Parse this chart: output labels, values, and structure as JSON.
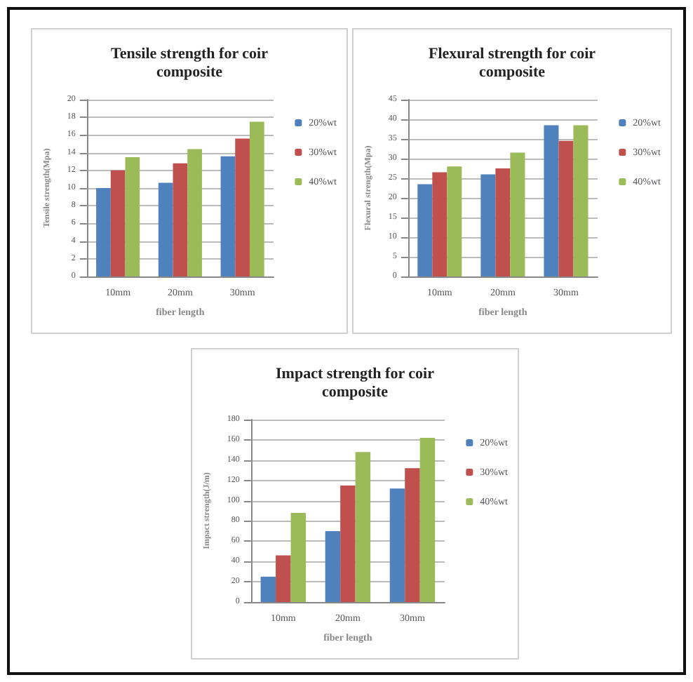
{
  "chart_data": [
    {
      "type": "bar",
      "title": "Tensile strength for coir composite",
      "xlabel": "fiber length",
      "ylabel": "Tensile strength(Mpa)",
      "categories": [
        "10mm",
        "20mm",
        "30mm"
      ],
      "series": [
        {
          "name": "20%wt",
          "color": "#4f81bd",
          "values": [
            10,
            10.6,
            13.6
          ]
        },
        {
          "name": "30%wt",
          "color": "#c0504d",
          "values": [
            12,
            12.8,
            15.6
          ]
        },
        {
          "name": "40%wt",
          "color": "#9bbb59",
          "values": [
            13.5,
            14.4,
            17.5
          ]
        }
      ],
      "ylim": [
        0,
        20
      ],
      "yticks": [
        0,
        2,
        4,
        6,
        8,
        10,
        12,
        14,
        16,
        18,
        20
      ],
      "grid": "y",
      "legend": "right"
    },
    {
      "type": "bar",
      "title": "Flexural strength for coir composite",
      "xlabel": "fiber length",
      "ylabel": "Flexural strength(Mpa)",
      "categories": [
        "10mm",
        "20mm",
        "30mm"
      ],
      "series": [
        {
          "name": "20%wt",
          "color": "#4f81bd",
          "values": [
            23.5,
            26,
            38.5
          ]
        },
        {
          "name": "30%wt",
          "color": "#c0504d",
          "values": [
            26.5,
            27.5,
            34.5
          ]
        },
        {
          "name": "40%wt",
          "color": "#9bbb59",
          "values": [
            28,
            31.5,
            38.5
          ]
        }
      ],
      "ylim": [
        0,
        45
      ],
      "yticks": [
        0,
        5,
        10,
        15,
        20,
        25,
        30,
        35,
        40,
        45
      ],
      "grid": "y",
      "legend": "right"
    },
    {
      "type": "bar",
      "title": "Impact strength for coir composite",
      "xlabel": "fiber length",
      "ylabel": "Impact strength(J/m)",
      "categories": [
        "10mm",
        "20mm",
        "30mm"
      ],
      "series": [
        {
          "name": "20%wt",
          "color": "#4f81bd",
          "values": [
            25,
            70,
            112
          ]
        },
        {
          "name": "30%wt",
          "color": "#c0504d",
          "values": [
            46,
            115,
            132
          ]
        },
        {
          "name": "40%wt",
          "color": "#9bbb59",
          "values": [
            88,
            148,
            162
          ]
        }
      ],
      "ylim": [
        0,
        180
      ],
      "yticks": [
        0,
        20,
        40,
        60,
        80,
        100,
        120,
        140,
        160,
        180
      ],
      "grid": "y",
      "legend": "right"
    }
  ]
}
